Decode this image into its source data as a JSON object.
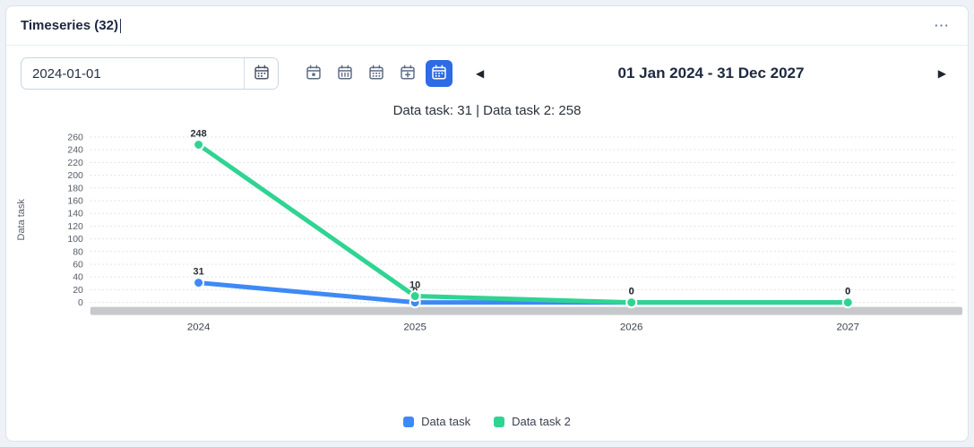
{
  "header": {
    "title": "Timeseries (32)",
    "menu_icon": "⋯"
  },
  "toolbar": {
    "date_value": "2024-01-01",
    "date_picker_icon": "calendar-icon",
    "views": [
      {
        "name": "calendar-day",
        "active": false
      },
      {
        "name": "calendar-week",
        "active": false
      },
      {
        "name": "calendar-month",
        "active": false
      },
      {
        "name": "calendar-custom",
        "active": false
      },
      {
        "name": "calendar-year",
        "active": true
      }
    ],
    "prev_icon": "◀",
    "next_icon": "▶",
    "range_label": "01 Jan 2024 - 31 Dec 2027"
  },
  "summary": {
    "text": "Data task: 31 | Data task 2: 258"
  },
  "chart_data": {
    "type": "line",
    "x": [
      "2024",
      "2025",
      "2026",
      "2027"
    ],
    "series": [
      {
        "name": "Data task",
        "color": "#3d8af6",
        "values": [
          31,
          0,
          0,
          0
        ]
      },
      {
        "name": "Data task 2",
        "color": "#2fd492",
        "values": [
          248,
          10,
          0,
          0
        ]
      }
    ],
    "title": "",
    "xlabel": "",
    "ylabel": "Data task",
    "ylim": [
      0,
      260
    ],
    "ytick_step": 20,
    "grid": true,
    "grid_style": "dotted",
    "point_labels": true,
    "legend_position": "bottom",
    "scrollbar": true
  },
  "colors": {
    "accent_blue": "#2e6be5",
    "series_blue": "#3d8af6",
    "series_green": "#2fd492",
    "scrollbar_gray": "#c6c8cc"
  }
}
